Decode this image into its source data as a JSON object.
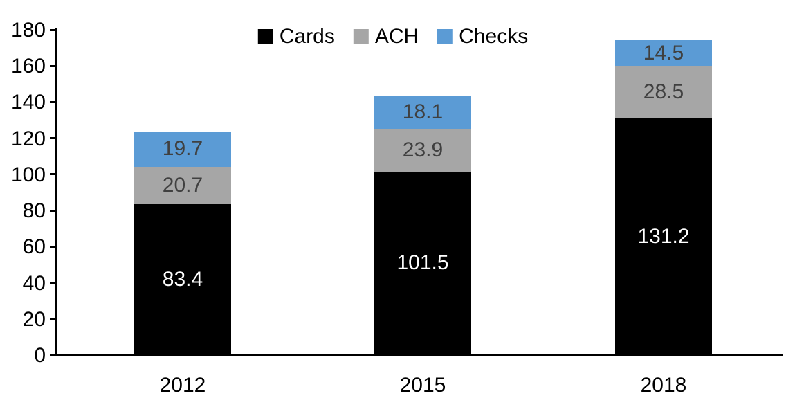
{
  "chart_data": {
    "type": "bar",
    "stacked": true,
    "title": "",
    "xlabel": "",
    "ylabel": "",
    "categories": [
      "2012",
      "2015",
      "2018"
    ],
    "series": [
      {
        "name": "Cards",
        "values": [
          83.4,
          101.5,
          131.2
        ],
        "color": "#000000",
        "label_color": "#ffffff"
      },
      {
        "name": "ACH",
        "values": [
          20.7,
          23.9,
          28.5
        ],
        "color": "#A6A6A6",
        "label_color": "#404040"
      },
      {
        "name": "Checks",
        "values": [
          19.7,
          18.1,
          14.5
        ],
        "color": "#5B9BD5",
        "label_color": "#404040"
      }
    ],
    "totals": [
      123.8,
      143.5,
      174.2
    ],
    "ylim": [
      0,
      180
    ],
    "ytick_step": 20,
    "ytick_labels": [
      "0",
      "20",
      "40",
      "60",
      "80",
      "100",
      "120",
      "140",
      "160",
      "180"
    ],
    "grid": false,
    "legend_position": "top-center",
    "data_labels_format": "one-decimal"
  }
}
